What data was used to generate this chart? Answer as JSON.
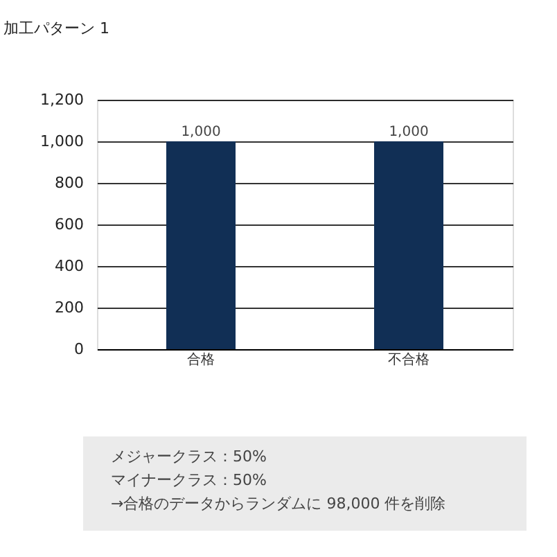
{
  "chart_data": {
    "type": "bar",
    "title": "加工パターン 1",
    "categories": [
      "合格",
      "不合格"
    ],
    "values": [
      1000,
      1000
    ],
    "color": "#112f55",
    "value_labels": [
      "1,000",
      "1,000"
    ],
    "ylim": [
      0,
      1200
    ],
    "yticks": [
      0,
      {
        "value": 200,
        "label": "200"
      },
      {
        "value": 400,
        "label": "400"
      },
      {
        "value": 600,
        "label": "600"
      },
      {
        "value": 800,
        "label": "800"
      },
      {
        "value": 1000,
        "label": "1,000"
      },
      {
        "value": 1200,
        "label": "1,200"
      }
    ],
    "grid": "y",
    "annotations": [
      "メジャークラス：50%",
      "マイナークラス：50%",
      "→合格のデータからランダムに 98,000 件を削除"
    ]
  }
}
